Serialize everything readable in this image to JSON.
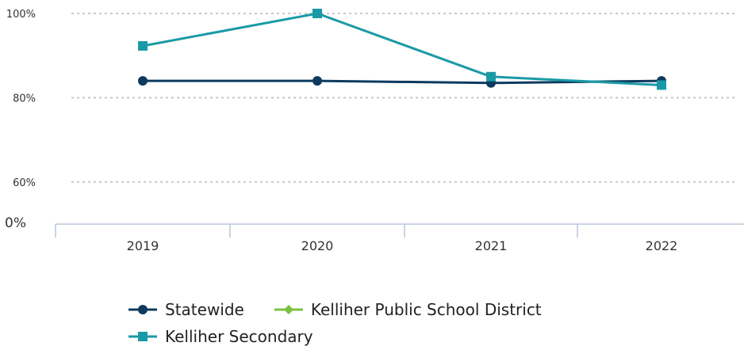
{
  "chart_data": {
    "type": "line",
    "categories": [
      "2019",
      "2020",
      "2021",
      "2022"
    ],
    "y_axis": {
      "ticks": [
        {
          "value": 100,
          "label": "100%"
        },
        {
          "value": 80,
          "label": "80%"
        },
        {
          "value": 60,
          "label": "60%"
        }
      ],
      "baseline": {
        "value": 50,
        "label": "0%"
      },
      "range": [
        50,
        100
      ],
      "gridlines": "dotted"
    },
    "series": [
      {
        "name": "Statewide",
        "values": [
          84,
          84,
          83.5,
          84
        ],
        "color": "#0d3a5e",
        "marker": "circle"
      },
      {
        "name": "Kelliher Public School District",
        "values": [
          null,
          null,
          null,
          null
        ],
        "color": "#7ac143",
        "marker": "diamond"
      },
      {
        "name": "Kelliher Secondary",
        "values": [
          92.3,
          100,
          85,
          83
        ],
        "color": "#1a9aa6",
        "marker": "square"
      }
    ],
    "legend_position": "bottom"
  }
}
